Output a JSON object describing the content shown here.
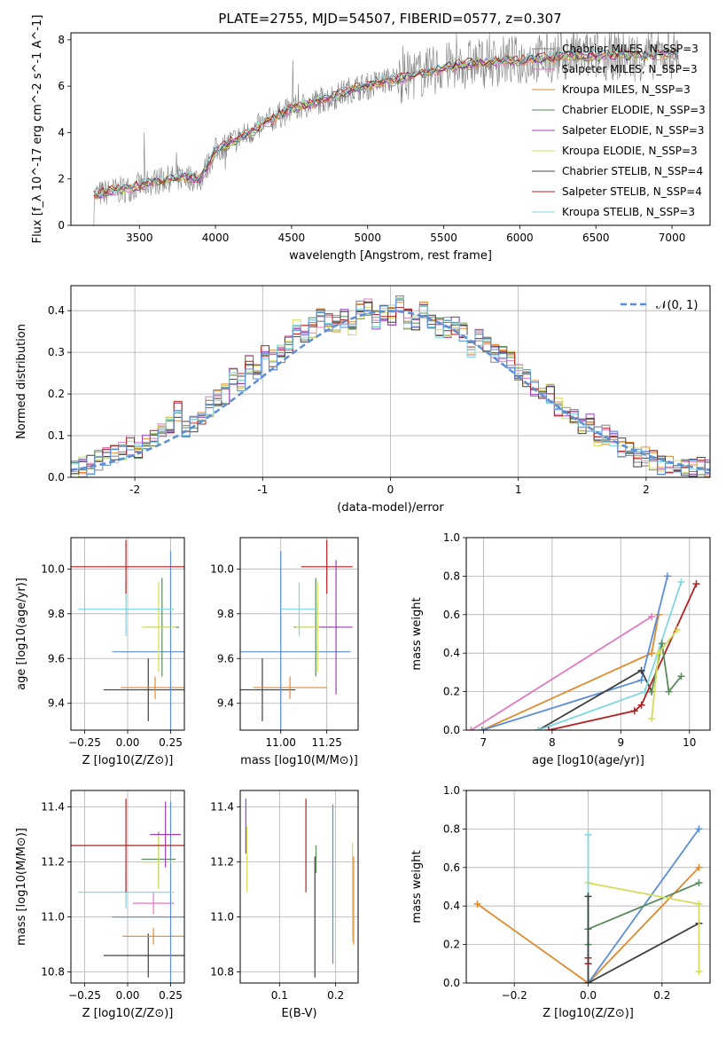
{
  "figure": {
    "title": "PLATE=2755, MJD=54507, FIBERID=0577, z=0.307"
  },
  "colors": {
    "Chabrier MILES": "#808080",
    "Salpeter MILES": "#e377c2",
    "Kroupa MILES": "#e08a2d",
    "Chabrier ELODIE": "#5a8a5a",
    "Salpeter ELODIE": "#9b3fbf",
    "Kroupa ELODIE": "#d4dc5a",
    "Chabrier STELIB": "#404040",
    "Salpeter STELIB": "#b22222",
    "Kroupa STELIB": "#7fd7e0",
    "Gaussian": "#5b8ed6"
  },
  "chart_data": [
    {
      "id": "spectrum",
      "type": "line",
      "xlabel": "wavelength [Angstrom, rest frame]",
      "ylabel": "Flux [f_λ 10^-17 erg cm^-2 s^-1 A^-1]",
      "xlim": [
        3050,
        7250
      ],
      "ylim": [
        0,
        8.3
      ],
      "xticks": [
        3500,
        4000,
        4500,
        5000,
        5500,
        6000,
        6500,
        7000
      ],
      "yticks": [
        0,
        2,
        4,
        6,
        8
      ],
      "legend": [
        {
          "label": "Chabrier MILES, N_SSP=3",
          "color": "#808080"
        },
        {
          "label": "Salpeter MILES, N_SSP=3",
          "color": "#e377c2"
        },
        {
          "label": "Kroupa MILES, N_SSP=3",
          "color": "#e08a2d"
        },
        {
          "label": "Chabrier ELODIE, N_SSP=3",
          "color": "#5a8a5a"
        },
        {
          "label": "Salpeter ELODIE, N_SSP=3",
          "color": "#9b3fbf"
        },
        {
          "label": "Kroupa ELODIE, N_SSP=3",
          "color": "#d4dc5a"
        },
        {
          "label": "Chabrier STELIB, N_SSP=4",
          "color": "#404040"
        },
        {
          "label": "Salpeter STELIB, N_SSP=4",
          "color": "#b22222"
        },
        {
          "label": "Kroupa STELIB, N_SSP=3",
          "color": "#7fd7e0"
        }
      ],
      "series": [
        {
          "x": [
            3200,
            3300,
            3400,
            3500,
            3600,
            3700,
            3800,
            3900,
            4000,
            4100,
            4200,
            4300,
            4400,
            4500,
            4600,
            4700,
            4800,
            4900,
            5000,
            5100,
            5200,
            5300,
            5400,
            5500,
            5600,
            5700,
            5800,
            5900,
            6000,
            6100,
            6200,
            6300,
            6400,
            6500,
            6600,
            6700,
            6800,
            6900,
            7000,
            7050
          ],
          "y": [
            1.3,
            1.45,
            1.55,
            1.7,
            1.9,
            2.0,
            2.1,
            2.0,
            3.2,
            3.6,
            3.9,
            4.3,
            4.7,
            5.0,
            5.2,
            5.4,
            5.6,
            5.9,
            6.0,
            6.2,
            6.3,
            6.5,
            6.6,
            6.8,
            6.9,
            7.0,
            7.0,
            7.1,
            7.1,
            7.2,
            7.2,
            7.3,
            7.3,
            7.3,
            7.35,
            7.3,
            7.3,
            7.35,
            7.4,
            7.4
          ]
        }
      ]
    },
    {
      "id": "histogram",
      "type": "bar",
      "xlabel": "(data-model)/error",
      "ylabel": "Normed distribution",
      "xlim": [
        -2.5,
        2.5
      ],
      "ylim": [
        0,
        0.46
      ],
      "xticks": [
        -2,
        -1,
        0,
        1,
        2
      ],
      "yticks": [
        0.0,
        0.1,
        0.2,
        0.3,
        0.4
      ],
      "legend": [
        {
          "label": "𝒩(0, 1)",
          "color": "#5b8ed6",
          "style": "dashed"
        }
      ],
      "bin_width": 0.1,
      "bin_start": -2.5,
      "values": [
        0.02,
        0.025,
        0.03,
        0.04,
        0.05,
        0.055,
        0.06,
        0.075,
        0.07,
        0.08,
        0.1,
        0.11,
        0.13,
        0.16,
        0.12,
        0.13,
        0.15,
        0.17,
        0.19,
        0.2,
        0.24,
        0.23,
        0.27,
        0.26,
        0.3,
        0.28,
        0.3,
        0.32,
        0.36,
        0.34,
        0.36,
        0.38,
        0.37,
        0.37,
        0.38,
        0.35,
        0.4,
        0.41,
        0.38,
        0.4,
        0.39,
        0.42,
        0.38,
        0.37,
        0.4,
        0.37,
        0.36,
        0.36,
        0.36,
        0.35,
        0.31,
        0.34,
        0.32,
        0.3,
        0.29,
        0.28,
        0.25,
        0.24,
        0.22,
        0.2,
        0.2,
        0.17,
        0.15,
        0.14,
        0.12,
        0.13,
        0.1,
        0.1,
        0.09,
        0.07,
        0.06,
        0.05,
        0.05,
        0.04,
        0.03,
        0.03,
        0.03,
        0.02,
        0.02,
        0.025,
        0.02
      ],
      "spreads": [
        0.01,
        0.015,
        0.02,
        0.025,
        0.03,
        0.035,
        0.04
      ]
    },
    {
      "id": "age-vs-Z",
      "type": "scatter",
      "xlabel": "Z [log10(Z/Z⊙)]",
      "ylabel": "age  [log10(age/yr)]",
      "xlim": [
        -0.33,
        0.33
      ],
      "ylim": [
        9.28,
        10.14
      ],
      "xticks": [
        -0.25,
        0.0,
        0.25
      ],
      "xticklabels": [
        "−0.25",
        "0.00",
        "0.25"
      ],
      "yticks": [
        9.4,
        9.6,
        9.8,
        10.0
      ],
      "points": [
        {
          "x": 0.12,
          "y": 9.46,
          "xerr": 0.26,
          "yerr": 0.14,
          "color": "#404040"
        },
        {
          "x": 0.16,
          "y": 9.47,
          "xerr": 0.2,
          "yerr": 0.05,
          "color": "#e08a2d"
        },
        {
          "x": 0.25,
          "y": 9.63,
          "xerr": 0.34,
          "yerr": 0.45,
          "color": "#5b8ed6"
        },
        {
          "x": 0.2,
          "y": 9.74,
          "xerr": 0.1,
          "yerr": 0.22,
          "color": "#5a8a5a"
        },
        {
          "x": 0.18,
          "y": 9.74,
          "xerr": 0.1,
          "yerr": 0.2,
          "color": "#d4dc5a"
        },
        {
          "x": -0.01,
          "y": 9.82,
          "xerr": 0.28,
          "yerr": 0.12,
          "color": "#7fd7e0"
        },
        {
          "x": -0.01,
          "y": 10.01,
          "xerr": 0.38,
          "yerr": 0.12,
          "color": "#b22222"
        }
      ]
    },
    {
      "id": "age-vs-mass",
      "type": "scatter",
      "xlabel": "mass [log10(M/M⊙)]",
      "ylabel": "",
      "xlim": [
        10.78,
        11.42
      ],
      "ylim": [
        9.28,
        10.14
      ],
      "xticks": [
        11.0,
        11.25
      ],
      "xticklabels": [
        "11.00",
        "11.25"
      ],
      "yticks": [
        9.4,
        9.6,
        9.8,
        10.0
      ],
      "points": [
        {
          "x": 10.9,
          "y": 9.46,
          "xerr": 0.18,
          "yerr": 0.14,
          "color": "#404040"
        },
        {
          "x": 11.05,
          "y": 9.47,
          "xerr": 0.2,
          "yerr": 0.05,
          "color": "#e08a2d"
        },
        {
          "x": 11.0,
          "y": 9.63,
          "xerr": 0.38,
          "yerr": 0.45,
          "color": "#5b8ed6"
        },
        {
          "x": 11.19,
          "y": 9.74,
          "xerr": 0.12,
          "yerr": 0.22,
          "color": "#5a8a5a"
        },
        {
          "x": 11.2,
          "y": 9.74,
          "xerr": 0.12,
          "yerr": 0.2,
          "color": "#d4dc5a"
        },
        {
          "x": 11.1,
          "y": 9.82,
          "xerr": 0.1,
          "yerr": 0.12,
          "color": "#7fd7e0"
        },
        {
          "x": 11.25,
          "y": 10.01,
          "xerr": 0.14,
          "yerr": 0.12,
          "color": "#b22222"
        },
        {
          "x": 11.3,
          "y": 9.74,
          "xerr": 0.09,
          "yerr": 0.3,
          "color": "#9b3fbf"
        }
      ]
    },
    {
      "id": "weight-vs-age",
      "type": "line",
      "xlabel": "age  [log10(age/yr)]",
      "ylabel": "mass weight",
      "xlim": [
        6.75,
        10.3
      ],
      "ylim": [
        0.0,
        1.0
      ],
      "xticks": [
        7,
        8,
        9,
        10
      ],
      "yticks": [
        0.0,
        0.2,
        0.4,
        0.6,
        0.8,
        1.0
      ],
      "series": [
        {
          "color": "#e377c2",
          "x": [
            6.82,
            9.45
          ],
          "y": [
            0.0,
            0.59
          ]
        },
        {
          "color": "#e08a2d",
          "x": [
            6.98,
            9.45,
            9.55
          ],
          "y": [
            0.0,
            0.4,
            0.6
          ]
        },
        {
          "color": "#5b8ed6",
          "x": [
            6.98,
            9.3,
            9.68
          ],
          "y": [
            0.0,
            0.26,
            0.8
          ]
        },
        {
          "color": "#404040",
          "x": [
            7.8,
            9.3,
            9.45
          ],
          "y": [
            0.0,
            0.31,
            0.2
          ]
        },
        {
          "color": "#7fd7e0",
          "x": [
            7.8,
            9.35,
            9.88
          ],
          "y": [
            0.0,
            0.2,
            0.77
          ]
        },
        {
          "color": "#b22222",
          "x": [
            7.95,
            9.2,
            9.3,
            10.1
          ],
          "y": [
            0.0,
            0.1,
            0.13,
            0.76
          ]
        },
        {
          "color": "#5a8a5a",
          "x": [
            9.45,
            9.6,
            9.7,
            9.88
          ],
          "y": [
            0.2,
            0.45,
            0.2,
            0.28
          ]
        },
        {
          "color": "#d4dc5a",
          "x": [
            9.45,
            9.55,
            9.82
          ],
          "y": [
            0.06,
            0.4,
            0.52
          ]
        }
      ]
    },
    {
      "id": "mass-vs-Z",
      "type": "scatter",
      "xlabel": "Z [log10(Z/Z⊙)]",
      "ylabel": "mass [log10(M/M⊙)]",
      "xlim": [
        -0.33,
        0.33
      ],
      "ylim": [
        10.76,
        11.46
      ],
      "xticks": [
        -0.25,
        0.0,
        0.25
      ],
      "xticklabels": [
        "−0.25",
        "0.00",
        "0.25"
      ],
      "yticks": [
        10.8,
        11.0,
        11.2,
        11.4
      ],
      "points": [
        {
          "x": 0.12,
          "y": 10.86,
          "xerr": 0.26,
          "yerr": 0.08,
          "color": "#404040"
        },
        {
          "x": 0.15,
          "y": 10.93,
          "xerr": 0.18,
          "yerr": 0.03,
          "color": "#e08a2d"
        },
        {
          "x": 0.15,
          "y": 11.05,
          "xerr": 0.12,
          "yerr": 0.04,
          "color": "#e377c2"
        },
        {
          "x": 0.25,
          "y": 11.0,
          "xerr": 0.34,
          "yerr": 0.42,
          "color": "#5b8ed6"
        },
        {
          "x": -0.01,
          "y": 11.09,
          "xerr": 0.28,
          "yerr": 0.06,
          "color": "#7fd7e0"
        },
        {
          "x": 0.18,
          "y": 11.21,
          "xerr": 0.1,
          "yerr": 0.1,
          "color": "#5a8a5a"
        },
        {
          "x": 0.18,
          "y": 11.2,
          "xerr": 0.1,
          "yerr": 0.1,
          "color": "#d4dc5a"
        },
        {
          "x": 0.22,
          "y": 11.3,
          "xerr": 0.09,
          "yerr": 0.12,
          "color": "#9b3fbf"
        },
        {
          "x": -0.01,
          "y": 11.26,
          "xerr": 0.38,
          "yerr": 0.17,
          "color": "#b22222"
        }
      ]
    },
    {
      "id": "mass-vs-ebv",
      "type": "scatter",
      "xlabel": "E(B-V)",
      "ylabel": "",
      "xlim": [
        0.03,
        0.24
      ],
      "ylim": [
        10.76,
        11.46
      ],
      "xticks": [
        0.1,
        0.2
      ],
      "xticklabels": [
        "0.1",
        "0.2"
      ],
      "yticks": [
        10.8,
        11.0,
        11.2,
        11.4
      ],
      "points": [
        {
          "x": 0.04,
          "y": 11.33,
          "yerr": 0.1,
          "color": "#9b3fbf"
        },
        {
          "x": 0.042,
          "y": 11.21,
          "yerr": 0.12,
          "color": "#d4dc5a"
        },
        {
          "x": 0.147,
          "y": 11.26,
          "yerr": 0.17,
          "color": "#b22222"
        },
        {
          "x": 0.163,
          "y": 11.0,
          "yerr": 0.22,
          "color": "#404040"
        },
        {
          "x": 0.165,
          "y": 11.21,
          "yerr": 0.05,
          "color": "#5a8a5a"
        },
        {
          "x": 0.195,
          "y": 11.12,
          "yerr": 0.29,
          "color": "#5b8ed6"
        },
        {
          "x": 0.23,
          "y": 11.09,
          "yerr": 0.18,
          "color": "#d4dc5a"
        },
        {
          "x": 0.232,
          "y": 11.06,
          "yerr": 0.16,
          "color": "#e08a2d"
        }
      ]
    },
    {
      "id": "weight-vs-Z",
      "type": "line",
      "xlabel": "Z [log10(Z/Z⊙)]",
      "ylabel": "mass weight",
      "xlim": [
        -0.33,
        0.33
      ],
      "ylim": [
        0.0,
        1.0
      ],
      "xticks": [
        -0.2,
        0.0,
        0.2
      ],
      "xticklabels": [
        "−0.2",
        "0.0",
        "0.2"
      ],
      "yticks": [
        0.0,
        0.2,
        0.4,
        0.6,
        0.8,
        1.0
      ],
      "series": [
        {
          "color": "#e08a2d",
          "x": [
            -0.3,
            0.0,
            0.3
          ],
          "y": [
            0.41,
            0.0,
            0.6
          ]
        },
        {
          "color": "#5b8ed6",
          "x": [
            0.0,
            0.3
          ],
          "y": [
            0.0,
            0.8
          ]
        },
        {
          "color": "#404040",
          "x": [
            0.0,
            0.3
          ],
          "y": [
            0.0,
            0.31
          ]
        },
        {
          "color": "#5a8a5a",
          "x": [
            0.0,
            0.0,
            0.3
          ],
          "y": [
            0.2,
            0.28,
            0.52
          ]
        },
        {
          "color": "#d4dc5a",
          "x": [
            0.0,
            0.3,
            0.3
          ],
          "y": [
            0.52,
            0.41,
            0.06
          ]
        },
        {
          "color": "#7fd7e0",
          "x": [
            0.0,
            0.0
          ],
          "y": [
            0.0,
            0.77
          ]
        },
        {
          "color": "#b22222",
          "x": [
            0.0,
            0.0
          ],
          "y": [
            0.1,
            0.13
          ]
        },
        {
          "color": "#404040",
          "x": [
            0.0,
            0.0
          ],
          "y": [
            0.0,
            0.45
          ]
        }
      ]
    }
  ]
}
